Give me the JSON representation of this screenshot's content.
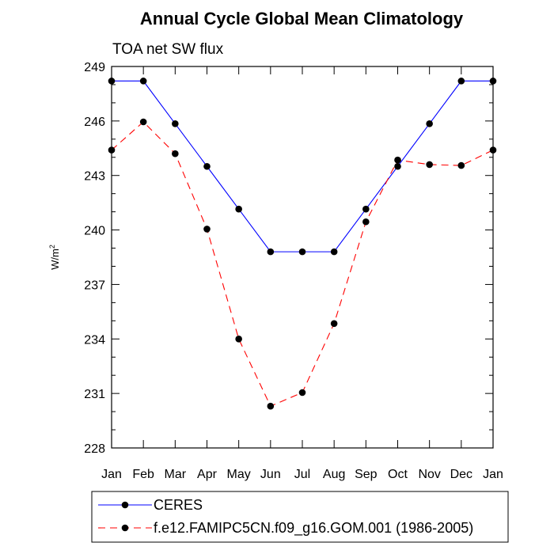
{
  "chart_data": {
    "type": "line",
    "title": "Annual Cycle Global Mean Climatology",
    "subtitle": "TOA net SW flux",
    "ylabel": "W/m",
    "ylabel_sup": "2",
    "ylim": [
      228,
      249
    ],
    "yticks": [
      "249",
      "246",
      "243",
      "240",
      "237",
      "234",
      "231",
      "228"
    ],
    "categories": [
      "Jan",
      "Feb",
      "Mar",
      "Apr",
      "May",
      "Jun",
      "Jul",
      "Aug",
      "Sep",
      "Oct",
      "Nov",
      "Dec",
      "Jan"
    ],
    "grid": false,
    "legend_position": "bottom",
    "series": [
      {
        "name": "CERES",
        "color": "#0000ff",
        "dash": "solid",
        "values": [
          248.2,
          248.2,
          245.85,
          243.5,
          241.15,
          238.8,
          238.8,
          238.8,
          241.15,
          243.5,
          245.85,
          248.2,
          248.2
        ]
      },
      {
        "name": "f.e12.FAMIPC5CN.f09_g16.GOM.001 (1986-2005)",
        "color": "#ff0000",
        "dash": "dashed",
        "values": [
          244.4,
          245.95,
          244.2,
          240.05,
          234.0,
          230.3,
          231.05,
          234.85,
          240.45,
          243.85,
          243.6,
          243.55,
          244.4
        ]
      }
    ]
  }
}
